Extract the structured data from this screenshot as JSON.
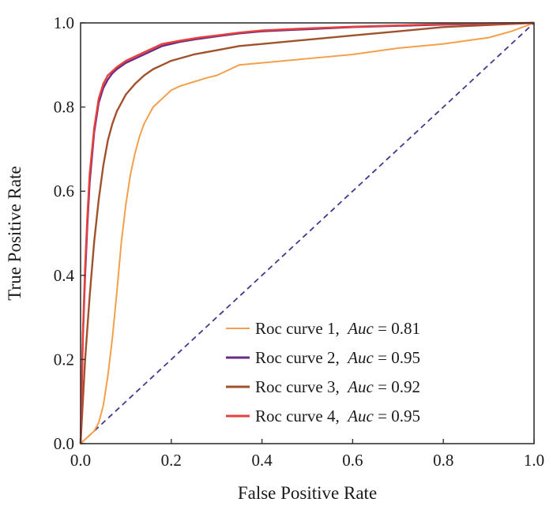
{
  "chart_data": {
    "type": "line",
    "xlabel": "False Positive Rate",
    "ylabel": "True Positive Rate",
    "xlim": [
      0,
      1
    ],
    "ylim": [
      0,
      1
    ],
    "xticks": [
      "0.0",
      "0.2",
      "0.4",
      "0.6",
      "0.8",
      "1.0"
    ],
    "yticks": [
      "0.0",
      "0.2",
      "0.4",
      "0.6",
      "0.8",
      "1.0"
    ],
    "grid": false,
    "legend": {
      "placement": "bottom-right"
    },
    "series": [
      {
        "name": "Roc curve 1",
        "auc_label": "Auc",
        "auc_value": "0.81",
        "color": "#F4A04A",
        "x": [
          0,
          0.01,
          0.02,
          0.03,
          0.04,
          0.05,
          0.06,
          0.07,
          0.08,
          0.09,
          0.1,
          0.11,
          0.12,
          0.13,
          0.14,
          0.15,
          0.16,
          0.17,
          0.18,
          0.2,
          0.22,
          0.25,
          0.28,
          0.3,
          0.33,
          0.35,
          0.4,
          0.5,
          0.6,
          0.7,
          0.8,
          0.9,
          0.95,
          1.0
        ],
        "y": [
          0,
          0.01,
          0.02,
          0.03,
          0.05,
          0.09,
          0.16,
          0.25,
          0.36,
          0.48,
          0.57,
          0.64,
          0.69,
          0.73,
          0.76,
          0.78,
          0.8,
          0.81,
          0.82,
          0.84,
          0.85,
          0.86,
          0.87,
          0.875,
          0.89,
          0.9,
          0.905,
          0.915,
          0.925,
          0.94,
          0.95,
          0.965,
          0.98,
          1.0
        ]
      },
      {
        "name": "Roc curve 2",
        "auc_label": "Auc",
        "auc_value": "0.95",
        "color": "#6A2C85",
        "x": [
          0,
          0.005,
          0.01,
          0.015,
          0.02,
          0.03,
          0.04,
          0.05,
          0.06,
          0.07,
          0.08,
          0.1,
          0.12,
          0.15,
          0.18,
          0.22,
          0.26,
          0.3,
          0.35,
          0.4,
          0.5,
          0.6,
          0.7,
          0.8,
          0.9,
          1.0
        ],
        "y": [
          0,
          0.25,
          0.4,
          0.52,
          0.62,
          0.74,
          0.81,
          0.845,
          0.865,
          0.88,
          0.89,
          0.905,
          0.915,
          0.93,
          0.945,
          0.955,
          0.962,
          0.968,
          0.975,
          0.98,
          0.985,
          0.99,
          0.993,
          0.996,
          0.998,
          1.0
        ]
      },
      {
        "name": "Roc curve 3",
        "auc_label": "Auc",
        "auc_value": "0.92",
        "color": "#A0522D",
        "x": [
          0,
          0.005,
          0.01,
          0.02,
          0.03,
          0.04,
          0.05,
          0.06,
          0.07,
          0.08,
          0.09,
          0.1,
          0.12,
          0.14,
          0.16,
          0.18,
          0.2,
          0.25,
          0.3,
          0.35,
          0.4,
          0.5,
          0.6,
          0.7,
          0.8,
          0.9,
          1.0
        ],
        "y": [
          0,
          0.1,
          0.2,
          0.35,
          0.48,
          0.58,
          0.66,
          0.72,
          0.76,
          0.79,
          0.81,
          0.83,
          0.855,
          0.875,
          0.89,
          0.9,
          0.91,
          0.925,
          0.935,
          0.945,
          0.95,
          0.96,
          0.97,
          0.98,
          0.99,
          0.995,
          1.0
        ]
      },
      {
        "name": "Roc curve 4",
        "auc_label": "Auc",
        "auc_value": "0.95",
        "color": "#E8413C",
        "x": [
          0,
          0.005,
          0.01,
          0.015,
          0.02,
          0.03,
          0.04,
          0.05,
          0.06,
          0.07,
          0.08,
          0.1,
          0.12,
          0.15,
          0.18,
          0.22,
          0.26,
          0.3,
          0.35,
          0.4,
          0.5,
          0.6,
          0.7,
          0.8,
          0.9,
          1.0
        ],
        "y": [
          0,
          0.26,
          0.42,
          0.54,
          0.64,
          0.75,
          0.82,
          0.855,
          0.875,
          0.885,
          0.895,
          0.91,
          0.92,
          0.935,
          0.95,
          0.958,
          0.965,
          0.97,
          0.977,
          0.982,
          0.987,
          0.991,
          0.994,
          0.997,
          0.999,
          1.0
        ]
      }
    ],
    "reference_line": {
      "x": [
        0,
        1
      ],
      "y": [
        0,
        1
      ],
      "color": "#3F3A8C",
      "style": "dashed"
    }
  }
}
